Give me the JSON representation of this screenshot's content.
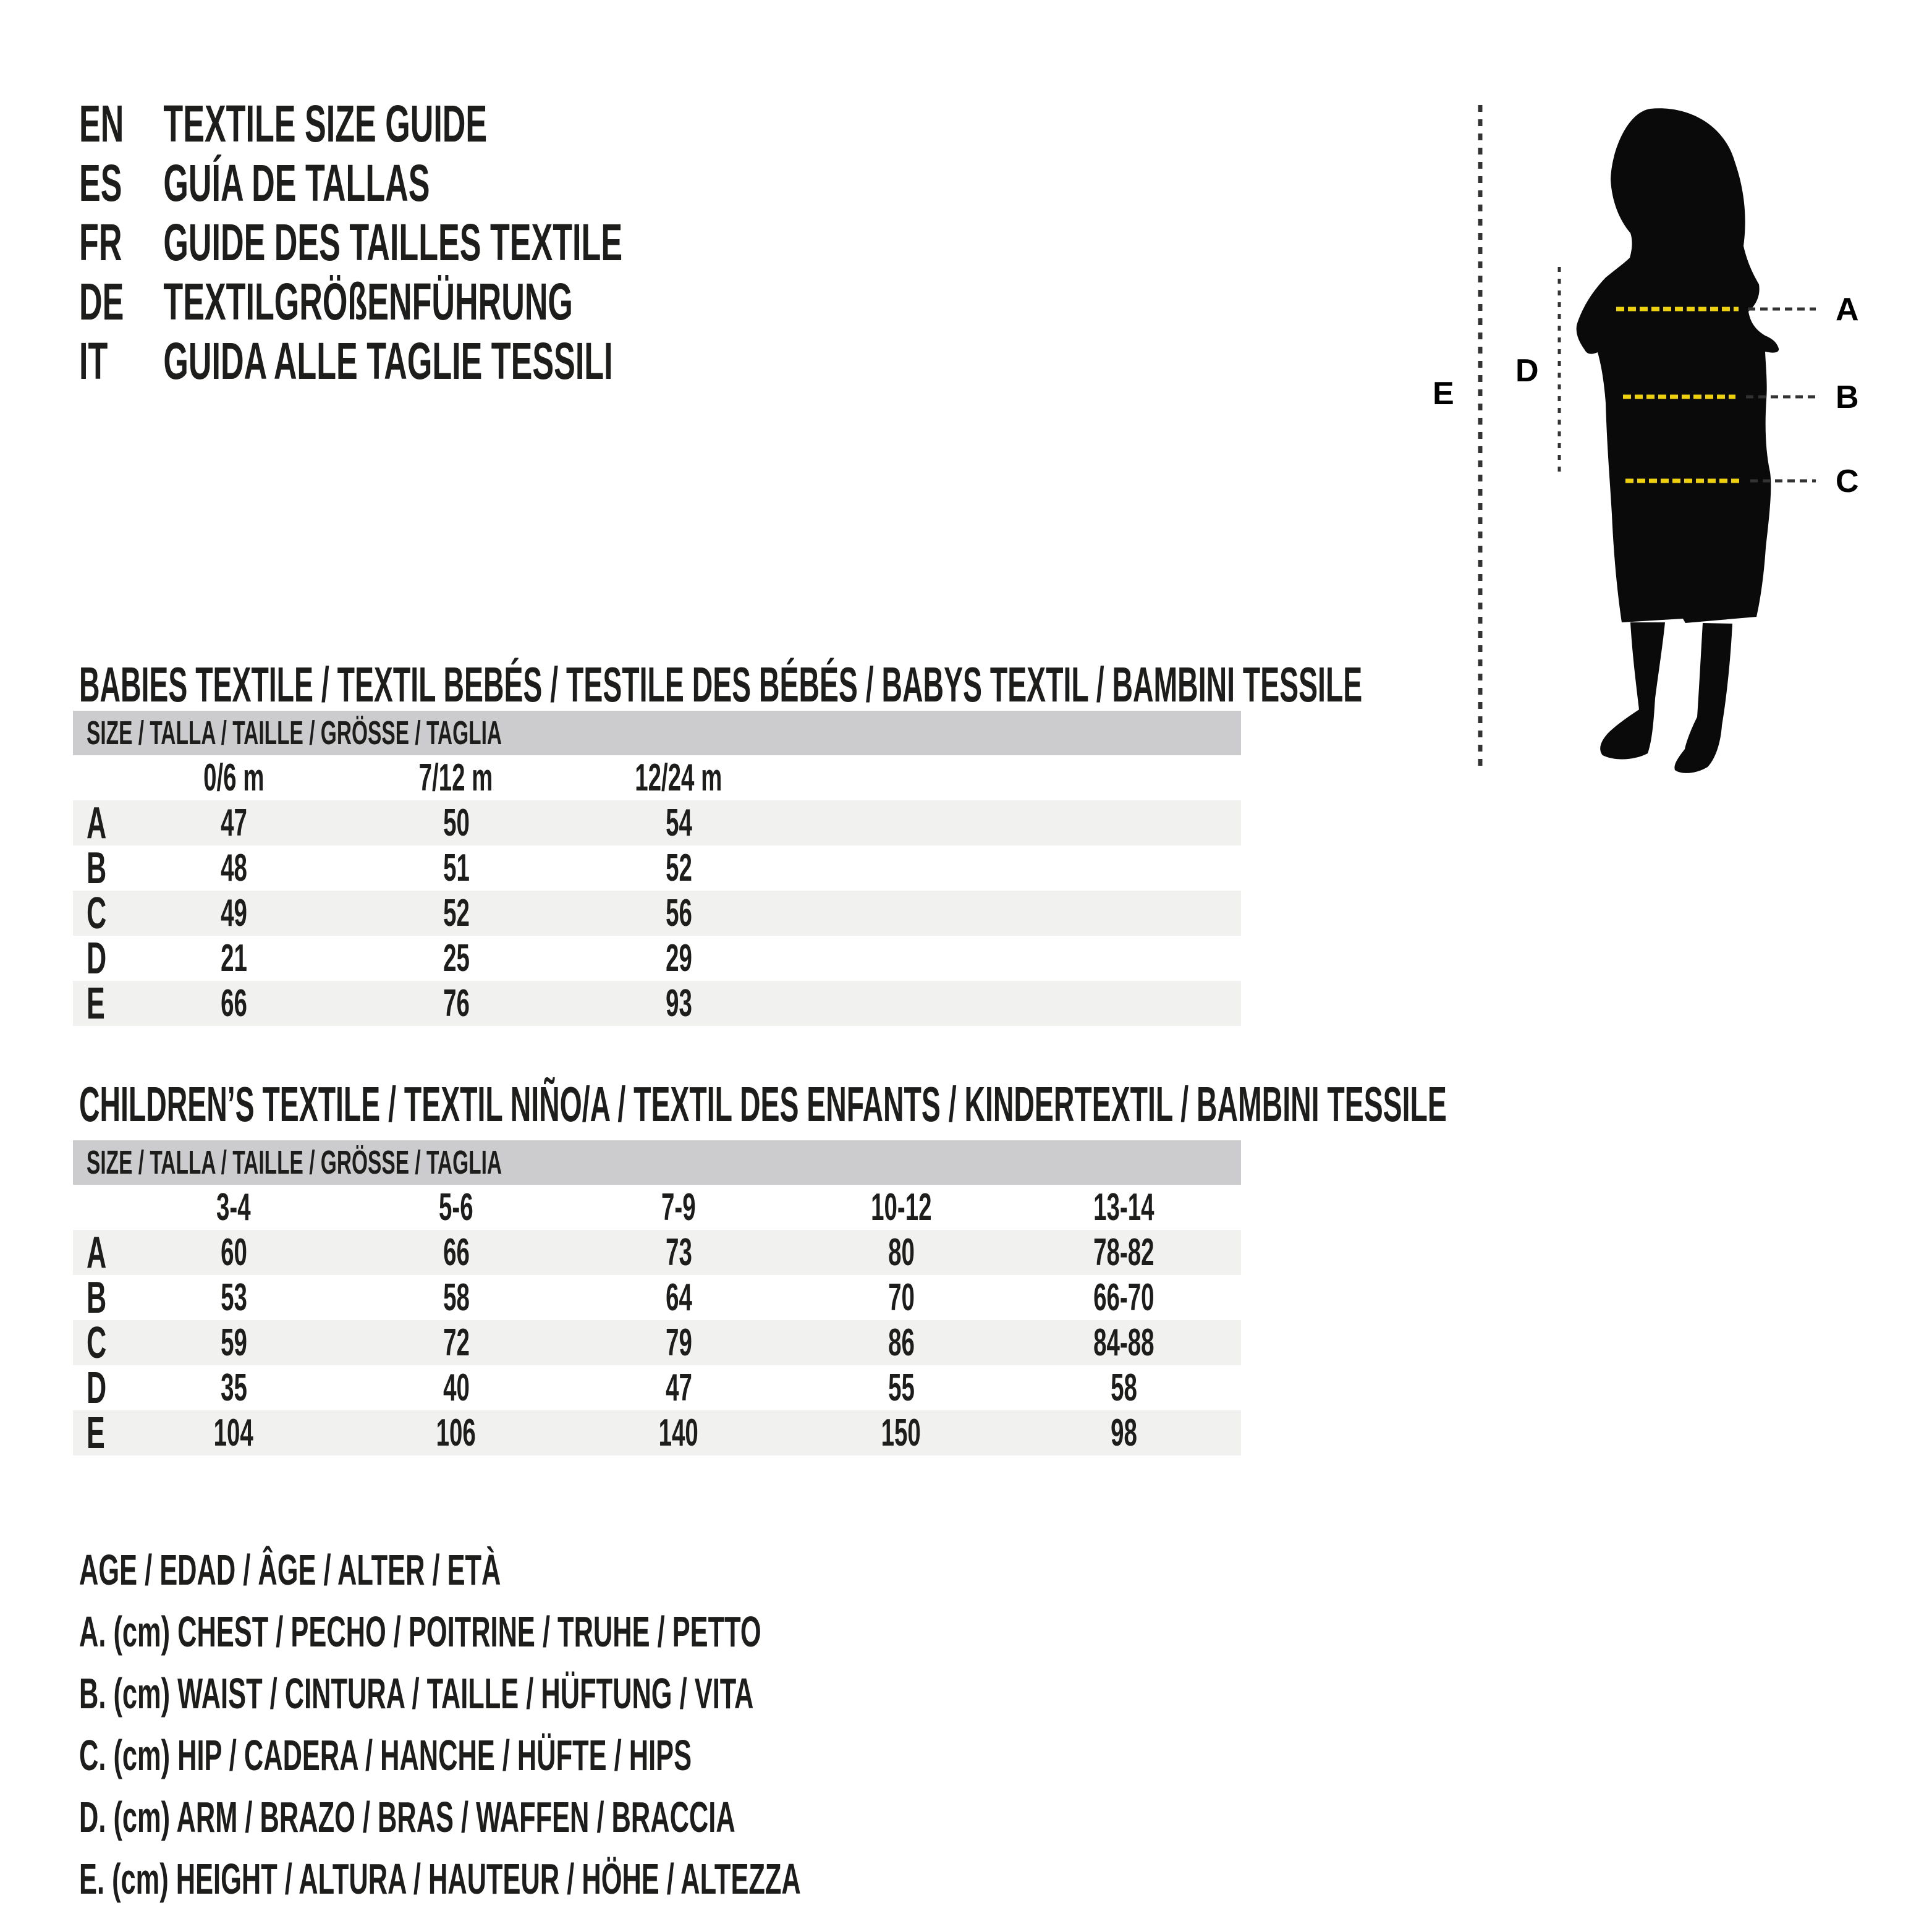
{
  "colors": {
    "text": "#1d1d1b",
    "accent_yellow": "#efd00f",
    "dark_dash": "#333333",
    "silhouette": "#0a0a0a",
    "table_header_bg": "#cccccf",
    "row_alt_bg": "#f1f1f0"
  },
  "languages": [
    {
      "code": "EN",
      "title": "TEXTILE SIZE GUIDE"
    },
    {
      "code": "ES",
      "title": "GUÍA DE TALLAS"
    },
    {
      "code": "FR",
      "title": "GUIDE DES TAILLES TEXTILE"
    },
    {
      "code": "DE",
      "title": "TEXTILGRÖßENFÜHRUNG"
    },
    {
      "code": "IT",
      "title": "GUIDA ALLE TAGLIE TESSILI"
    }
  ],
  "figure": {
    "measure_labels": {
      "a": "A",
      "b": "B",
      "c": "C",
      "d": "D",
      "e": "E"
    }
  },
  "babies": {
    "section_title": "BABIES TEXTILE / TEXTIL BEBÉS / TESTILE DES BÉBÉS / BABYS TEXTIL / BAMBINI TESSILE",
    "table_header": "SIZE / TALLA / TAILLE / GRÖSSE / TAGLIA",
    "columns": [
      "0/6 m",
      "7/12 m",
      "12/24 m"
    ],
    "rows": [
      {
        "label": "A",
        "values": [
          "47",
          "50",
          "54"
        ]
      },
      {
        "label": "B",
        "values": [
          "48",
          "51",
          "52"
        ]
      },
      {
        "label": "C",
        "values": [
          "49",
          "52",
          "56"
        ]
      },
      {
        "label": "D",
        "values": [
          "21",
          "25",
          "29"
        ]
      },
      {
        "label": "E",
        "values": [
          "66",
          "76",
          "93"
        ]
      }
    ]
  },
  "children": {
    "section_title": "CHILDREN’S TEXTILE / TEXTIL NIÑO/A / TEXTIL DES ENFANTS / KINDERTEXTIL / BAMBINI TESSILE",
    "table_header": "SIZE / TALLA / TAILLE / GRÖSSE / TAGLIA",
    "columns": [
      "3-4",
      "5-6",
      "7-9",
      "10-12",
      "13-14"
    ],
    "rows": [
      {
        "label": "A",
        "values": [
          "60",
          "66",
          "73",
          "80",
          "78-82"
        ]
      },
      {
        "label": "B",
        "values": [
          "53",
          "58",
          "64",
          "70",
          "66-70"
        ]
      },
      {
        "label": "C",
        "values": [
          "59",
          "72",
          "79",
          "86",
          "84-88"
        ]
      },
      {
        "label": "D",
        "values": [
          "35",
          "40",
          "47",
          "55",
          "58"
        ]
      },
      {
        "label": "E",
        "values": [
          "104",
          "106",
          "140",
          "150",
          "98"
        ]
      }
    ]
  },
  "legend": {
    "lines": [
      "AGE / EDAD / ÂGE / ALTER / ETÀ",
      "A. (cm) CHEST / PECHO / POITRINE / TRUHE / PETTO",
      "B. (cm) WAIST / CINTURA / TAILLE / HÜFTUNG / VITA",
      "C. (cm) HIP / CADERA / HANCHE / HÜFTE / HIPS",
      "D. (cm) ARM / BRAZO / BRAS / WAFFEN / BRACCIA",
      "E. (cm) HEIGHT / ALTURA / HAUTEUR / HÖHE / ALTEZZA"
    ]
  }
}
